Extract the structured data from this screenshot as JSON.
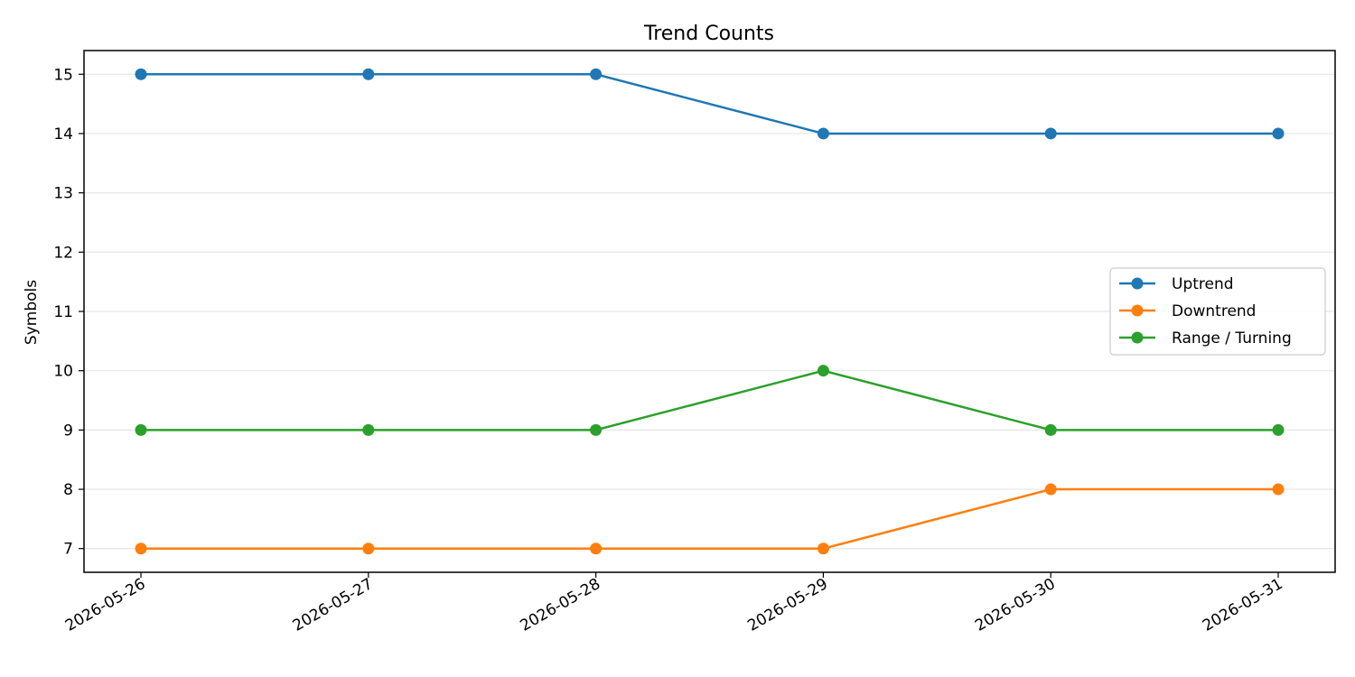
{
  "chart_data": {
    "type": "line",
    "title": "Trend Counts",
    "xlabel": "",
    "ylabel": "Symbols",
    "x": [
      "2026-05-26",
      "2026-05-27",
      "2026-05-28",
      "2026-05-29",
      "2026-05-30",
      "2026-05-31"
    ],
    "ylim": [
      6.6,
      15.4
    ],
    "yticks": [
      7,
      8,
      9,
      10,
      11,
      12,
      13,
      14,
      15
    ],
    "grid": "y",
    "legend_position": "center-right",
    "series": [
      {
        "name": "Uptrend",
        "color": "#1f77b4",
        "values": [
          15,
          15,
          15,
          14,
          14,
          14
        ]
      },
      {
        "name": "Downtrend",
        "color": "#ff7f0e",
        "values": [
          7,
          7,
          7,
          7,
          8,
          8
        ]
      },
      {
        "name": "Range / Turning",
        "color": "#2ca02c",
        "values": [
          9,
          9,
          9,
          10,
          9,
          9
        ]
      }
    ]
  }
}
